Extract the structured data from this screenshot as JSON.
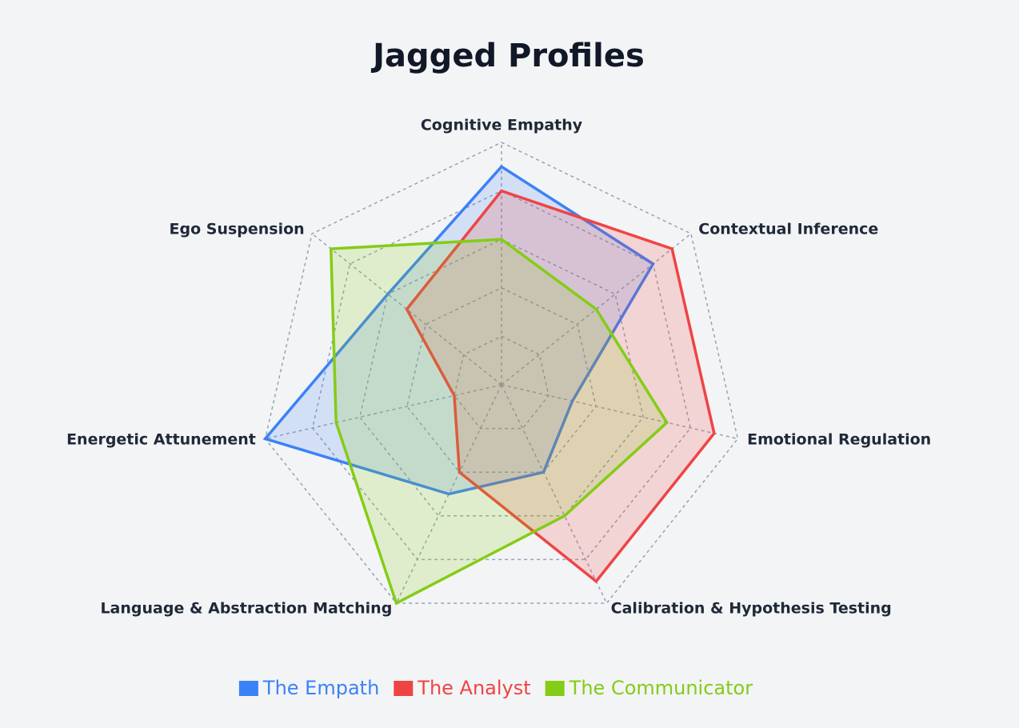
{
  "chart_data": {
    "type": "radar",
    "title": "Jagged Profiles",
    "categories": [
      "Cognitive Empathy",
      "Contextual Inference",
      "Emotional Regulation",
      "Calibration & Hypothesis Testing",
      "Language & Abstraction Matching",
      "Energetic Attunement",
      "Ego Suspension"
    ],
    "series": [
      {
        "name": "The Empath",
        "color": "#3b82f6",
        "values": [
          9,
          8,
          3,
          4,
          5,
          10,
          6
        ]
      },
      {
        "name": "The Analyst",
        "color": "#ef4444",
        "values": [
          8,
          9,
          9,
          9,
          4,
          2,
          5
        ]
      },
      {
        "name": "The Communicator",
        "color": "#84cc16",
        "values": [
          6,
          5,
          7,
          6,
          10,
          7,
          9
        ]
      }
    ],
    "rlim": [
      0,
      10
    ],
    "rticks": [
      2,
      4,
      6,
      8,
      10
    ],
    "grid": true,
    "legend": "bottom"
  }
}
